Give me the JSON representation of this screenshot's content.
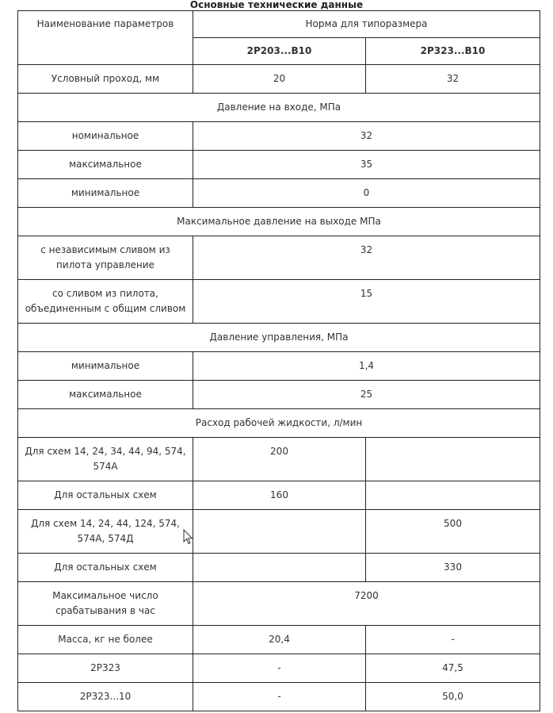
{
  "title": "Основные технические данные",
  "header": {
    "param_label": "Наименование параметров",
    "norm_label": "Норма для типоразмера",
    "col1": "2Р203...В10",
    "col2": "2Р323...В10"
  },
  "rows": [
    {
      "type": "row",
      "h": 36,
      "cells": [
        "Условный проход, мм",
        "20",
        "32"
      ]
    },
    {
      "type": "section",
      "h": 36,
      "text": "Давление на входе, МПа"
    },
    {
      "type": "span",
      "h": 36,
      "cells": [
        "номинальное",
        "32"
      ]
    },
    {
      "type": "span",
      "h": 36,
      "cells": [
        "максимальное",
        "35"
      ]
    },
    {
      "type": "span",
      "h": 36,
      "cells": [
        "минимальное",
        "0"
      ]
    },
    {
      "type": "section",
      "h": 36,
      "text": "Максимальное давление на выходе МПа"
    },
    {
      "type": "span",
      "h": 55,
      "cells": [
        "с независимым сливом из пилота управление",
        "32"
      ]
    },
    {
      "type": "span",
      "h": 55,
      "cells": [
        "со сливом из пилота, объединенным с общим сливом",
        "15"
      ]
    },
    {
      "type": "section",
      "h": 36,
      "text": "Давление управления, МПа"
    },
    {
      "type": "span",
      "h": 36,
      "cells": [
        "минимальное",
        "1,4"
      ]
    },
    {
      "type": "span",
      "h": 36,
      "cells": [
        "максимальное",
        "25"
      ]
    },
    {
      "type": "section",
      "h": 36,
      "text": "Расход рабочей жидкости, л/мин"
    },
    {
      "type": "row",
      "h": 55,
      "cells": [
        "Для схем 14, 24, 34, 44, 94, 574, 574А",
        "200",
        ""
      ]
    },
    {
      "type": "row",
      "h": 36,
      "cells": [
        "Для остальных схем",
        "160",
        ""
      ]
    },
    {
      "type": "row",
      "h": 55,
      "cells": [
        "Для схем 14, 24, 44, 124, 574, 574А, 574Д",
        "",
        "500"
      ]
    },
    {
      "type": "row",
      "h": 36,
      "cells": [
        "Для остальных схем",
        "",
        "330"
      ]
    },
    {
      "type": "span",
      "h": 55,
      "cells": [
        "Максимальное число срабатывания в час",
        "7200"
      ]
    },
    {
      "type": "row",
      "h": 36,
      "cells": [
        "Масса, кг не более",
        "20,4",
        "-"
      ]
    },
    {
      "type": "row",
      "h": 36,
      "cells": [
        "2Р323",
        "-",
        "47,5"
      ]
    },
    {
      "type": "row",
      "h": 36,
      "cells": [
        "2Р323...10",
        "-",
        "50,0"
      ]
    }
  ],
  "cursor_icon": "mouse-pointer-icon"
}
